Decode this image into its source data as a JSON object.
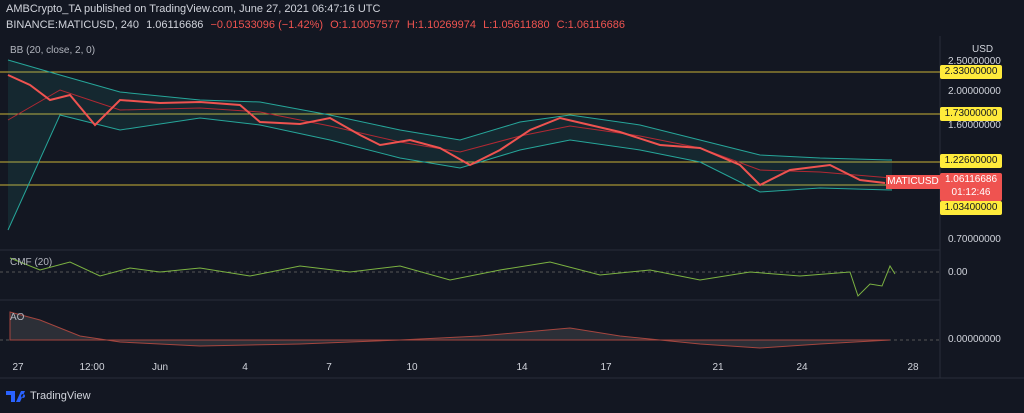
{
  "header": {
    "publisher": "AMBCrypto_TA published on TradingView.com, June 27, 2021 06:47:16 UTC",
    "symbol": "BINANCE:MATICUSD, 240",
    "last": "1.06116686",
    "change": "−0.01533096 (−1.42%)",
    "open": "O:1.10057577",
    "high": "H:1.10269974",
    "low": "L:1.05611880",
    "close": "C:1.06116686"
  },
  "indicators": {
    "bb": "BB (20, close, 2, 0)",
    "cmf": "CMF (20)",
    "ao": "AO"
  },
  "price_axis": {
    "currency": "USD",
    "ticks": [
      "2.50000000",
      "2.00000000",
      "1.60000000",
      "0.70000000"
    ],
    "levels": [
      "2.33000000",
      "1.73000000",
      "1.22600000",
      "1.03400000"
    ],
    "current": {
      "name": "MATICUSD",
      "price": "1.06116686",
      "countdown": "01:12:46"
    },
    "cmf_tick": "0.00",
    "ao_tick": "0.00000000"
  },
  "time_axis": [
    "27",
    "12:00",
    "Jun",
    "4",
    "7",
    "10",
    "14",
    "17",
    "21",
    "24",
    "28"
  ],
  "footer": "TradingView"
}
